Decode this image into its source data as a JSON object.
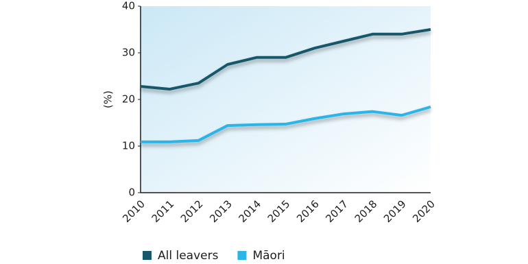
{
  "chart_data": {
    "type": "line",
    "y_label": "(%)",
    "categories": [
      "2010",
      "2011",
      "2012",
      "2013",
      "2014",
      "2015",
      "2016",
      "2017",
      "2018",
      "2019",
      "2020"
    ],
    "series": [
      {
        "name": "All leavers",
        "color": "#17596a",
        "values": [
          22.8,
          22.2,
          23.5,
          27.5,
          29,
          29,
          31,
          32.5,
          34,
          34,
          35
        ]
      },
      {
        "name": "Māori",
        "color": "#29b5e8",
        "values": [
          10.9,
          10.9,
          11.2,
          14.4,
          14.6,
          14.7,
          15.9,
          16.9,
          17.4,
          16.6,
          18.4
        ]
      }
    ],
    "ylim": [
      0,
      40
    ],
    "yticks": [
      0,
      10,
      20,
      30,
      40
    ],
    "legend": "bottom"
  }
}
